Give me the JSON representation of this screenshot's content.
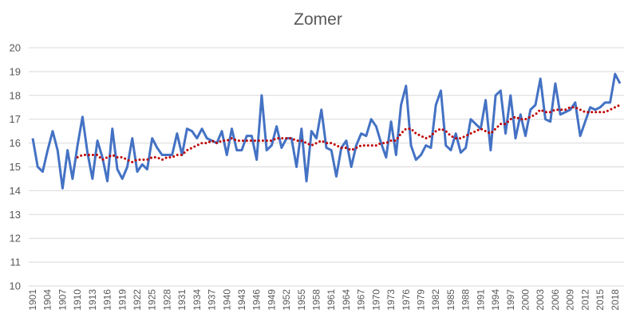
{
  "chart_data": {
    "type": "line",
    "title": "Zomer",
    "xlabel": "",
    "ylabel": "",
    "ylim": [
      10,
      20
    ],
    "yticks": [
      10,
      11,
      12,
      13,
      14,
      15,
      16,
      17,
      18,
      19,
      20
    ],
    "grid": "horizontal",
    "legend": "none",
    "x": [
      1901,
      1902,
      1903,
      1904,
      1905,
      1906,
      1907,
      1908,
      1909,
      1910,
      1911,
      1912,
      1913,
      1914,
      1915,
      1916,
      1917,
      1918,
      1919,
      1920,
      1921,
      1922,
      1923,
      1924,
      1925,
      1926,
      1927,
      1928,
      1929,
      1930,
      1931,
      1932,
      1933,
      1934,
      1935,
      1936,
      1937,
      1938,
      1939,
      1940,
      1941,
      1942,
      1943,
      1944,
      1945,
      1946,
      1947,
      1948,
      1949,
      1950,
      1951,
      1952,
      1953,
      1954,
      1955,
      1956,
      1957,
      1958,
      1959,
      1960,
      1961,
      1962,
      1963,
      1964,
      1965,
      1966,
      1967,
      1968,
      1969,
      1970,
      1971,
      1972,
      1973,
      1974,
      1975,
      1976,
      1977,
      1978,
      1979,
      1980,
      1981,
      1982,
      1983,
      1984,
      1985,
      1986,
      1987,
      1988,
      1989,
      1990,
      1991,
      1992,
      1993,
      1994,
      1995,
      1996,
      1997,
      1998,
      1999,
      2000,
      2001,
      2002,
      2003,
      2004,
      2005,
      2006,
      2007,
      2008,
      2009,
      2010,
      2011,
      2012,
      2013,
      2014,
      2015,
      2016,
      2017,
      2018,
      2019
    ],
    "xtick_labels": [
      "1901",
      "1904",
      "1907",
      "1910",
      "1913",
      "1916",
      "1919",
      "1922",
      "1925",
      "1928",
      "1931",
      "1934",
      "1937",
      "1940",
      "1943",
      "1946",
      "1949",
      "1952",
      "1955",
      "1958",
      "1961",
      "1964",
      "1967",
      "1970",
      "1973",
      "1976",
      "1979",
      "1982",
      "1985",
      "1988",
      "1991",
      "1994",
      "1997",
      "2000",
      "2003",
      "2006",
      "2009",
      "2012",
      "2015",
      "2018"
    ],
    "series": [
      {
        "style": "solid",
        "color": "#4472c4",
        "values": [
          16.2,
          15.0,
          14.8,
          15.7,
          16.5,
          15.7,
          14.1,
          15.7,
          14.5,
          15.9,
          17.1,
          15.6,
          14.5,
          16.1,
          15.4,
          14.4,
          16.6,
          14.9,
          14.5,
          15.0,
          16.2,
          14.8,
          15.1,
          14.9,
          16.2,
          15.8,
          15.5,
          15.5,
          15.5,
          16.4,
          15.5,
          16.6,
          16.5,
          16.2,
          16.6,
          16.2,
          16.1,
          16.0,
          16.5,
          15.5,
          16.6,
          15.7,
          15.7,
          16.3,
          16.3,
          15.3,
          18.0,
          15.7,
          15.9,
          16.7,
          15.8,
          16.2,
          16.2,
          15.0,
          16.6,
          14.4,
          16.5,
          16.2,
          17.4,
          15.8,
          15.7,
          14.6,
          15.8,
          16.1,
          15.0,
          15.9,
          16.4,
          16.3,
          17.0,
          16.7,
          16.0,
          15.4,
          16.9,
          15.5,
          17.6,
          18.4,
          15.9,
          15.3,
          15.5,
          15.9,
          15.8,
          17.6,
          18.2,
          15.9,
          15.7,
          16.4,
          15.6,
          15.8,
          17.0,
          16.8,
          16.6,
          17.8,
          15.7,
          18.0,
          18.2,
          16.4,
          18.0,
          16.2,
          17.2,
          16.3,
          17.4,
          17.6,
          18.7,
          17.0,
          16.9,
          18.5,
          17.2,
          17.3,
          17.4,
          17.7,
          16.3,
          16.9,
          17.5,
          17.4,
          17.5,
          17.7,
          17.7,
          18.9,
          18.5
        ]
      },
      {
        "style": "dotted",
        "color": "#c00000",
        "values": [
          null,
          null,
          null,
          null,
          null,
          null,
          null,
          null,
          null,
          15.4,
          15.5,
          15.5,
          15.5,
          15.5,
          15.3,
          15.4,
          15.5,
          15.4,
          15.4,
          15.3,
          15.2,
          15.3,
          15.3,
          15.3,
          15.4,
          15.4,
          15.3,
          15.4,
          15.4,
          15.5,
          15.5,
          15.7,
          15.8,
          15.9,
          16.0,
          16.0,
          16.1,
          16.0,
          16.1,
          16.1,
          16.2,
          16.1,
          16.1,
          16.1,
          16.1,
          16.1,
          16.1,
          16.1,
          16.1,
          16.2,
          16.2,
          16.2,
          16.2,
          16.1,
          16.1,
          16.0,
          15.9,
          16.0,
          16.1,
          16.0,
          16.0,
          15.9,
          15.8,
          15.8,
          15.7,
          15.8,
          15.9,
          15.9,
          15.9,
          15.9,
          16.0,
          16.0,
          16.1,
          16.1,
          16.4,
          16.6,
          16.6,
          16.4,
          16.3,
          16.2,
          16.3,
          16.5,
          16.6,
          16.5,
          16.3,
          16.2,
          16.2,
          16.3,
          16.4,
          16.5,
          16.6,
          16.5,
          16.4,
          16.6,
          16.8,
          16.8,
          17.0,
          17.1,
          17.0,
          17.0,
          17.1,
          17.2,
          17.4,
          17.3,
          17.3,
          17.4,
          17.4,
          17.4,
          17.5,
          17.5,
          17.4,
          17.3,
          17.3,
          17.3,
          17.3,
          17.3,
          17.4,
          17.5,
          17.6
        ]
      }
    ]
  }
}
